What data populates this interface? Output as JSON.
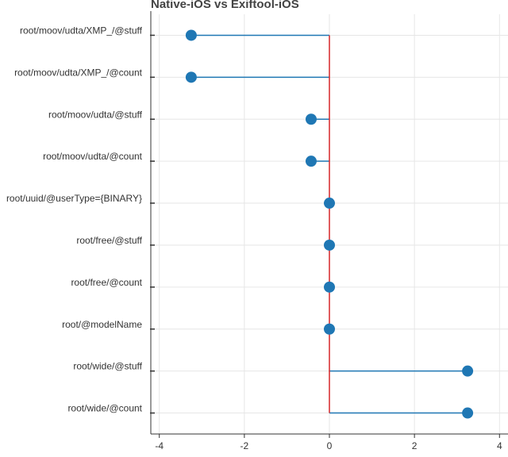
{
  "chart_data": {
    "type": "lollipop",
    "title": "Native-iOS vs Exiftool-iOS",
    "xlabel": "",
    "ylabel": "",
    "xlim": [
      -4.2,
      4.2
    ],
    "x_ticks": [
      -4,
      -2,
      0,
      2,
      4
    ],
    "x_tick_labels": [
      "-4",
      "-2",
      "0",
      "2",
      "4"
    ],
    "baseline": 0,
    "grid": true,
    "categories": [
      "root/moov/udta/XMP_/@stuff",
      "root/moov/udta/XMP_/@count",
      "root/moov/udta/@stuff",
      "root/moov/udta/@count",
      "root/uuid/@userType={BINARY}",
      "root/free/@stuff",
      "root/free/@count",
      "root/@modelName",
      "root/wide/@stuff",
      "root/wide/@count"
    ],
    "values": [
      -3.25,
      -3.25,
      -0.43,
      -0.43,
      0,
      0,
      0,
      0,
      3.25,
      3.25
    ],
    "colors": {
      "stem": "#1f77b4",
      "marker": "#1f77b4",
      "baseline": "#d62728",
      "grid": "#e6e6e6",
      "axis": "#333333",
      "title": "#444444",
      "tick_label": "#333333"
    }
  }
}
